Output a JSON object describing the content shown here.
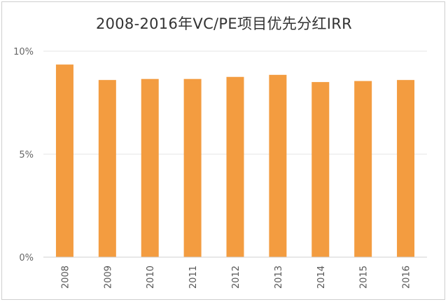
{
  "chart_data": {
    "type": "bar",
    "title": "2008-2016年VC/PE项目优先分红IRR",
    "categories": [
      "2008",
      "2009",
      "2010",
      "2011",
      "2012",
      "2013",
      "2014",
      "2015",
      "2016"
    ],
    "values": [
      9.35,
      8.6,
      8.65,
      8.65,
      8.75,
      8.85,
      8.5,
      8.55,
      8.6
    ],
    "ylim": [
      0,
      10
    ],
    "y_ticks": [
      0,
      5,
      10
    ],
    "y_tick_labels": [
      "0%",
      "5%",
      "10%"
    ],
    "xlabel": "",
    "ylabel": "",
    "grid": true,
    "bar_color": "#F39C40",
    "grid_color": "#e6e6e6"
  }
}
